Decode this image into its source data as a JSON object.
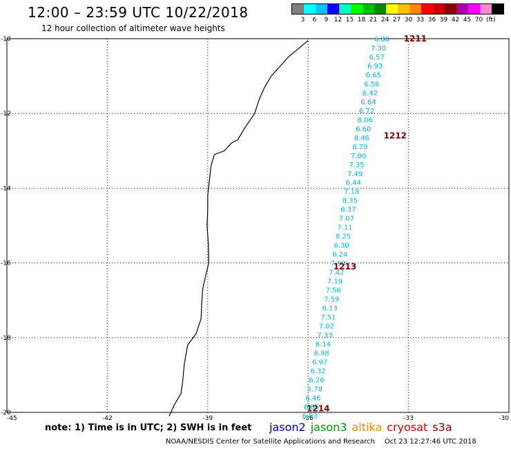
{
  "header": {
    "title": "12:00 – 23:59 UTC 10/22/2018",
    "subtitle": "12 hour collection of altimeter wave heights"
  },
  "legend": {
    "unit_label": "(ft)",
    "colors": [
      "#7f7f7f",
      "#00ffff",
      "#00c3ff",
      "#0000ff",
      "#00ffc0",
      "#00ff00",
      "#00c000",
      "#008800",
      "#ffff00",
      "#ffc000",
      "#ff8800",
      "#ff0000",
      "#cc0000",
      "#880000",
      "#aa00aa",
      "#ff00ff",
      "#ff88cc",
      "#000000"
    ],
    "ticks": [
      "3",
      "6",
      "9",
      "12",
      "15",
      "18",
      "21",
      "24",
      "27",
      "30",
      "33",
      "36",
      "39",
      "42",
      "45",
      "70"
    ]
  },
  "map": {
    "lon_labels": [
      "-45",
      "-42",
      "-39",
      "-36",
      "-33",
      "-30"
    ],
    "lat_labels": [
      "-10",
      "-12",
      "-14",
      "-16",
      "-18",
      "-20"
    ],
    "track_color": "#00b4e0",
    "label_color": "#800000",
    "swh_values": [
      {
        "lon": -33.8,
        "lat": -10.0,
        "v": "6.80"
      },
      {
        "lon": -33.9,
        "lat": -10.24,
        "v": "7.30"
      },
      {
        "lon": -33.95,
        "lat": -10.48,
        "v": "6.57"
      },
      {
        "lon": -34.0,
        "lat": -10.72,
        "v": "6.93"
      },
      {
        "lon": -34.05,
        "lat": -10.96,
        "v": "6.65"
      },
      {
        "lon": -34.1,
        "lat": -11.2,
        "v": "6.56"
      },
      {
        "lon": -34.15,
        "lat": -11.44,
        "v": "6.42"
      },
      {
        "lon": -34.2,
        "lat": -11.68,
        "v": "6.64"
      },
      {
        "lon": -34.25,
        "lat": -11.92,
        "v": "6.72"
      },
      {
        "lon": -34.3,
        "lat": -12.16,
        "v": "8.06"
      },
      {
        "lon": -34.35,
        "lat": -12.4,
        "v": "6.60"
      },
      {
        "lon": -34.4,
        "lat": -12.64,
        "v": "8.46"
      },
      {
        "lon": -34.45,
        "lat": -12.88,
        "v": "8.79"
      },
      {
        "lon": -34.5,
        "lat": -13.12,
        "v": "7.00"
      },
      {
        "lon": -34.55,
        "lat": -13.36,
        "v": "7.35"
      },
      {
        "lon": -34.6,
        "lat": -13.6,
        "v": "7.49"
      },
      {
        "lon": -34.65,
        "lat": -13.84,
        "v": "6.44"
      },
      {
        "lon": -34.7,
        "lat": -14.08,
        "v": "7.18"
      },
      {
        "lon": -34.75,
        "lat": -14.32,
        "v": "8.35"
      },
      {
        "lon": -34.8,
        "lat": -14.56,
        "v": "6.37"
      },
      {
        "lon": -34.85,
        "lat": -14.8,
        "v": "7.07"
      },
      {
        "lon": -34.9,
        "lat": -15.04,
        "v": "7.11"
      },
      {
        "lon": -34.95,
        "lat": -15.28,
        "v": "8.25"
      },
      {
        "lon": -35.0,
        "lat": -15.52,
        "v": "6.30"
      },
      {
        "lon": -35.05,
        "lat": -15.76,
        "v": "6.24"
      },
      {
        "lon": -35.1,
        "lat": -16.0,
        "v": "7.90"
      },
      {
        "lon": -35.15,
        "lat": -16.24,
        "v": "7.42"
      },
      {
        "lon": -35.2,
        "lat": -16.48,
        "v": "7.19"
      },
      {
        "lon": -35.25,
        "lat": -16.72,
        "v": "7.56"
      },
      {
        "lon": -35.3,
        "lat": -16.96,
        "v": "7.59"
      },
      {
        "lon": -35.35,
        "lat": -17.2,
        "v": "6.13"
      },
      {
        "lon": -35.4,
        "lat": -17.44,
        "v": "7.51"
      },
      {
        "lon": -35.45,
        "lat": -17.68,
        "v": "7.02"
      },
      {
        "lon": -35.5,
        "lat": -17.92,
        "v": "7.33"
      },
      {
        "lon": -35.55,
        "lat": -18.16,
        "v": "6.14"
      },
      {
        "lon": -35.6,
        "lat": -18.4,
        "v": "6.98"
      },
      {
        "lon": -35.65,
        "lat": -18.64,
        "v": "6.97"
      },
      {
        "lon": -35.7,
        "lat": -18.88,
        "v": "6.32"
      },
      {
        "lon": -35.75,
        "lat": -19.12,
        "v": "6.26"
      },
      {
        "lon": -35.8,
        "lat": -19.36,
        "v": "5.78"
      },
      {
        "lon": -35.85,
        "lat": -19.6,
        "v": "6.46"
      },
      {
        "lon": -35.9,
        "lat": -19.84,
        "v": "6.65"
      },
      {
        "lon": -35.95,
        "lat": -20.08,
        "v": "6.83"
      }
    ],
    "time_labels": [
      {
        "lon": -32.8,
        "lat": -10.0,
        "t": "1211"
      },
      {
        "lon": -33.4,
        "lat": -12.6,
        "t": "1212"
      },
      {
        "lon": -34.9,
        "lat": -16.1,
        "t": "1213"
      },
      {
        "lon": -35.7,
        "lat": -19.9,
        "t": "1214"
      }
    ],
    "coastline": [
      [
        -36.0,
        -10.05
      ],
      [
        -36.2,
        -10.2
      ],
      [
        -36.6,
        -10.5
      ],
      [
        -37.1,
        -11.0
      ],
      [
        -37.3,
        -11.3
      ],
      [
        -37.45,
        -11.6
      ],
      [
        -37.6,
        -12.0
      ],
      [
        -37.9,
        -12.4
      ],
      [
        -38.1,
        -12.7
      ],
      [
        -38.3,
        -12.8
      ],
      [
        -38.5,
        -13.0
      ],
      [
        -38.8,
        -13.1
      ],
      [
        -38.9,
        -13.4
      ],
      [
        -38.95,
        -13.8
      ],
      [
        -39.0,
        -14.2
      ],
      [
        -39.0,
        -14.6
      ],
      [
        -39.02,
        -15.0
      ],
      [
        -38.98,
        -15.5
      ],
      [
        -38.97,
        -16.0
      ],
      [
        -39.05,
        -16.3
      ],
      [
        -39.15,
        -16.7
      ],
      [
        -39.18,
        -17.1
      ],
      [
        -39.2,
        -17.5
      ],
      [
        -39.35,
        -17.9
      ],
      [
        -39.6,
        -18.2
      ],
      [
        -39.7,
        -18.7
      ],
      [
        -39.75,
        -19.2
      ],
      [
        -39.8,
        -19.5
      ],
      [
        -40.0,
        -19.8
      ],
      [
        -40.15,
        -20.1
      ]
    ]
  },
  "note": "note:  1) Time is in UTC;  2) SWH is in feet",
  "satellites": [
    {
      "name": "jason2",
      "color": "#0000cc"
    },
    {
      "name": "jason3",
      "color": "#009900"
    },
    {
      "name": "altika",
      "color": "#ff8800"
    },
    {
      "name": "cryosat",
      "color": "#dd0000"
    },
    {
      "name": "s3a",
      "color": "#880000"
    }
  ],
  "footer": {
    "credit": "NOAA/NESDIS Center for Satellite Applications and Research",
    "timestamp": "Oct 23 12:27:46 UTC 2018"
  }
}
